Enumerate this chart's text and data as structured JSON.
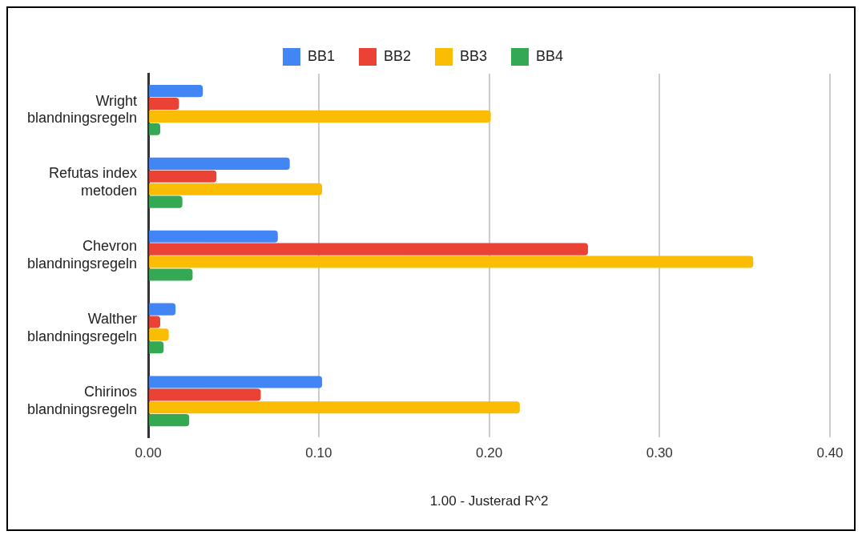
{
  "chart_data": {
    "type": "bar",
    "orientation": "horizontal",
    "categories": [
      "Wright blandningsregeln",
      "Refutas index metoden",
      "Chevron blandningsregeln",
      "Walther blandningsregeln",
      "Chirinos blandningsregeln"
    ],
    "series": [
      {
        "name": "BB1",
        "color": "#4285f4",
        "values": [
          0.032,
          0.083,
          0.076,
          0.016,
          0.102
        ]
      },
      {
        "name": "BB2",
        "color": "#ea4335",
        "values": [
          0.018,
          0.04,
          0.258,
          0.007,
          0.066
        ]
      },
      {
        "name": "BB3",
        "color": "#fbbc04",
        "values": [
          0.201,
          0.102,
          0.355,
          0.012,
          0.218
        ]
      },
      {
        "name": "BB4",
        "color": "#34a853",
        "values": [
          0.007,
          0.02,
          0.026,
          0.009,
          0.024
        ]
      }
    ],
    "xlabel": "1.00 - Justerad R^2",
    "xlim": [
      0,
      0.4
    ],
    "xticks": [
      {
        "value": 0,
        "label": "0.00"
      },
      {
        "value": 0.1,
        "label": "0.10"
      },
      {
        "value": 0.2,
        "label": "0.20"
      },
      {
        "value": 0.3,
        "label": "0.30"
      },
      {
        "value": 0.4,
        "label": "0.40"
      }
    ],
    "grid": "x",
    "legend": "top"
  }
}
